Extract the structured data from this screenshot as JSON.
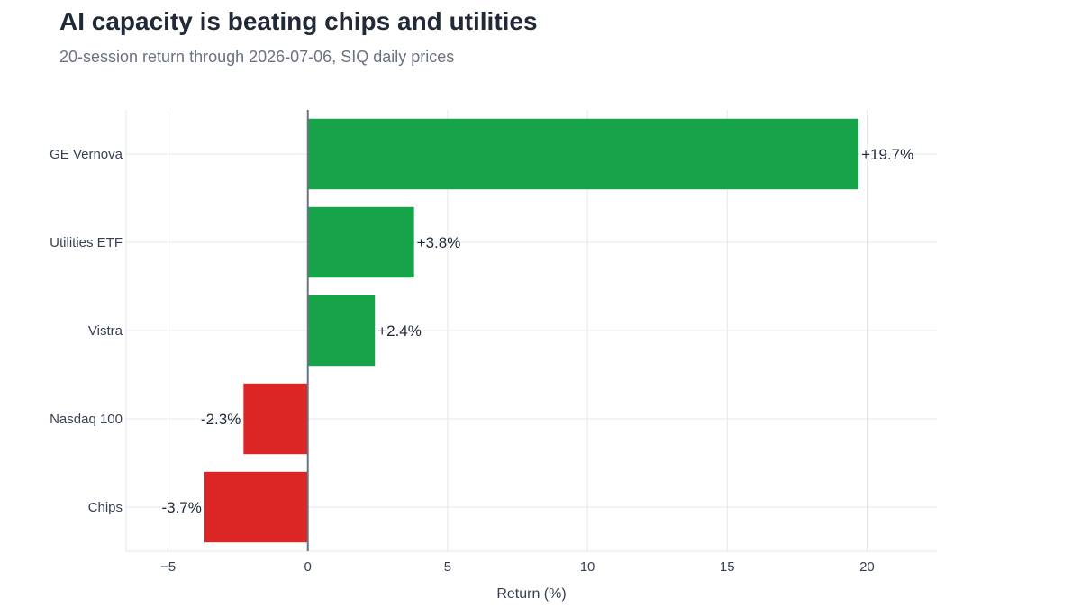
{
  "header": {
    "title": "AI capacity is beating chips and utilities",
    "subtitle": "20-session return through 2026-07-06, SIQ daily prices"
  },
  "chart_data": {
    "type": "bar",
    "orientation": "horizontal",
    "categories": [
      "GE Vernova",
      "Utilities ETF",
      "Vistra",
      "Nasdaq 100",
      "Chips"
    ],
    "values": [
      19.7,
      3.8,
      2.4,
      -2.3,
      -3.7
    ],
    "data_labels": [
      "+19.7%",
      "+3.8%",
      "+2.4%",
      "-2.3%",
      "-3.7%"
    ],
    "xlabel": "Return (%)",
    "ylabel": "",
    "xlim": [
      -6.5,
      22.5
    ],
    "xticks": [
      -5,
      0,
      5,
      10,
      15,
      20
    ],
    "xtick_labels": [
      "−5",
      "0",
      "5",
      "10",
      "15",
      "20"
    ],
    "grid": true,
    "legend": "none",
    "colors": {
      "positive": "#16a34a",
      "negative": "#dc2626",
      "zero_line": "#6b7280",
      "grid": "#e5e7eb"
    }
  }
}
